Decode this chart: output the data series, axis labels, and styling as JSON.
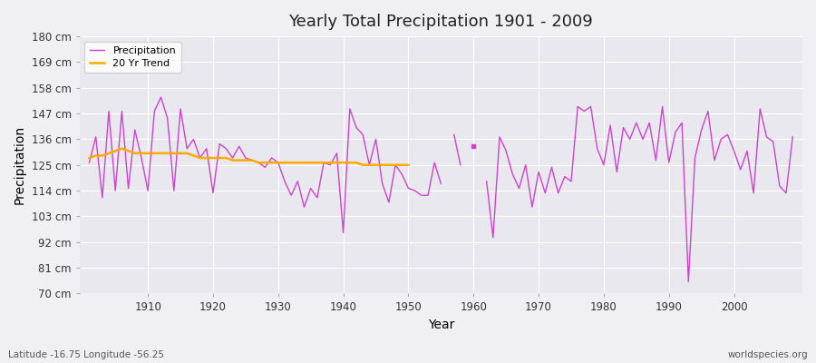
{
  "title": "Yearly Total Precipitation 1901 - 2009",
  "xlabel": "Year",
  "ylabel": "Precipitation",
  "lat_lon_label": "Latitude -16.75 Longitude -56.25",
  "source_label": "worldspecies.org",
  "ylim": [
    70,
    180
  ],
  "yticks": [
    70,
    81,
    92,
    103,
    114,
    125,
    136,
    147,
    158,
    169,
    180
  ],
  "ytick_labels": [
    "70 cm",
    "81 cm",
    "92 cm",
    "103 cm",
    "114 cm",
    "125 cm",
    "136 cm",
    "147 cm",
    "158 cm",
    "169 cm",
    "180 cm"
  ],
  "bg_color": "#f0f0f4",
  "plot_bg_color": "#e8e8ee",
  "grid_color": "#ffffff",
  "precip_color": "#cc44cc",
  "trend_color": "#ffaa00",
  "years": [
    1901,
    1902,
    1903,
    1904,
    1905,
    1906,
    1907,
    1908,
    1909,
    1910,
    1911,
    1912,
    1913,
    1914,
    1915,
    1916,
    1917,
    1918,
    1919,
    1920,
    1921,
    1922,
    1923,
    1924,
    1925,
    1926,
    1927,
    1928,
    1929,
    1930,
    1931,
    1932,
    1933,
    1934,
    1935,
    1936,
    1937,
    1938,
    1939,
    1940,
    1941,
    1942,
    1943,
    1944,
    1945,
    1946,
    1947,
    1948,
    1949,
    1950,
    1951,
    1952,
    1953,
    1954,
    1955,
    1956,
    1957,
    1958,
    1959,
    1960,
    1961,
    1962,
    1963,
    1964,
    1965,
    1966,
    1967,
    1968,
    1969,
    1970,
    1971,
    1972,
    1973,
    1974,
    1975,
    1976,
    1977,
    1978,
    1979,
    1980,
    1981,
    1982,
    1983,
    1984,
    1985,
    1986,
    1987,
    1988,
    1989,
    1990,
    1991,
    1992,
    1993,
    1994,
    1995,
    1996,
    1997,
    1998,
    1999,
    2000,
    2001,
    2002,
    2003,
    2004,
    2005,
    2006,
    2007,
    2008,
    2009
  ],
  "precip": [
    126,
    137,
    111,
    148,
    114,
    148,
    115,
    140,
    128,
    114,
    148,
    154,
    145,
    114,
    149,
    132,
    136,
    128,
    132,
    113,
    134,
    132,
    128,
    133,
    128,
    127,
    126,
    124,
    128,
    126,
    118,
    112,
    118,
    107,
    115,
    111,
    126,
    125,
    130,
    96,
    149,
    141,
    138,
    125,
    136,
    117,
    109,
    125,
    121,
    115,
    114,
    112,
    112,
    126,
    117,
    null,
    138,
    125,
    null,
    133,
    null,
    118,
    94,
    137,
    131,
    121,
    115,
    125,
    107,
    122,
    113,
    124,
    113,
    120,
    118,
    150,
    148,
    150,
    132,
    125,
    142,
    122,
    141,
    136,
    143,
    136,
    143,
    127,
    150,
    126,
    139,
    143,
    75,
    128,
    140,
    148,
    127,
    136,
    138,
    131,
    123,
    131,
    113,
    149,
    137,
    135,
    116,
    113,
    137
  ],
  "trend_years": [
    1901,
    1902,
    1903,
    1904,
    1905,
    1906,
    1907,
    1908,
    1909,
    1910,
    1911,
    1912,
    1913,
    1914,
    1915,
    1916,
    1917,
    1918,
    1919,
    1920,
    1921,
    1922,
    1923,
    1924,
    1925,
    1926,
    1927,
    1928,
    1929,
    1930,
    1931,
    1932,
    1933,
    1934,
    1935,
    1936,
    1937,
    1938,
    1939,
    1940,
    1941,
    1942,
    1943,
    1944,
    1945,
    1946,
    1947,
    1948,
    1949,
    1950
  ],
  "trend": [
    128,
    129,
    129,
    130,
    131,
    132,
    131,
    130,
    130,
    130,
    130,
    130,
    130,
    130,
    130,
    130,
    129,
    128,
    128,
    128,
    128,
    128,
    127,
    127,
    127,
    127,
    126,
    126,
    126,
    126,
    126,
    126,
    126,
    126,
    126,
    126,
    126,
    126,
    126,
    126,
    126,
    126,
    125,
    125,
    125,
    125,
    125,
    125,
    125,
    125
  ]
}
